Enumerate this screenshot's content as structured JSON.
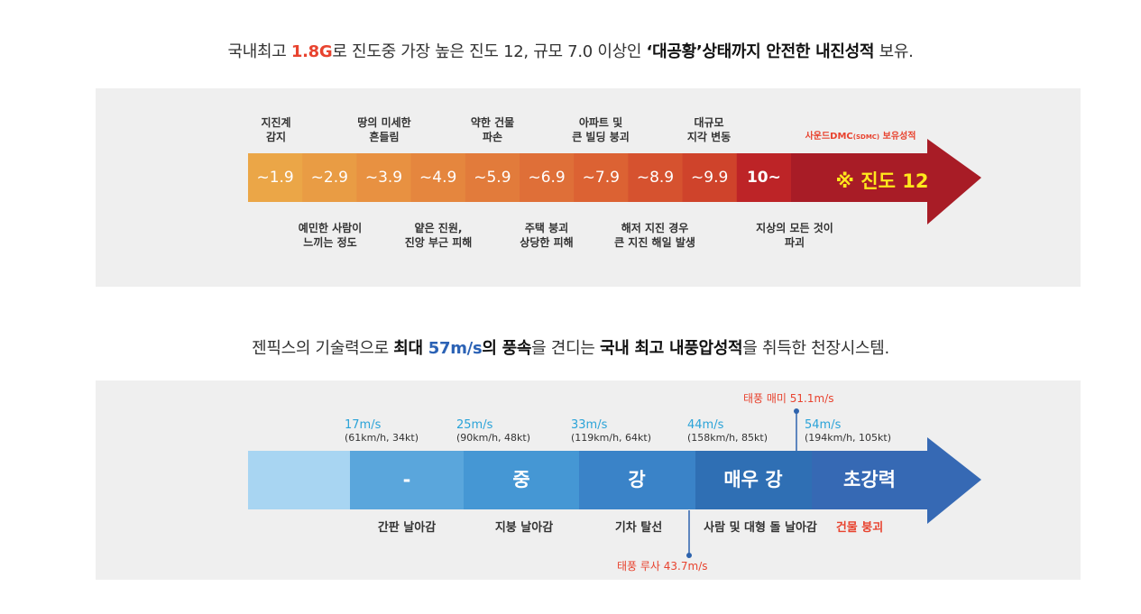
{
  "section1": {
    "headline": {
      "p1": "국내최고 ",
      "accent": "1.8G",
      "p2": "로 진도중 가장  높은 진도 12,  규모 7.0 이상인 ",
      "bold": "‘대공황’상태까지 안전한 내진성적",
      "p3": " 보유."
    },
    "segments": [
      "~1.9",
      "~2.9",
      "~3.9",
      "~4.9",
      "~5.9",
      "~6.9",
      "~7.9",
      "~8.9",
      "~9.9",
      "10~"
    ],
    "highlight": {
      "symbol": "※",
      "text": "진도 12"
    },
    "result_note": {
      "part1": "사운드DMC",
      "part2": "(SDMC)",
      "part3": " 보유성적"
    },
    "top_labels": [
      {
        "line1": "지진계",
        "line2": "감지"
      },
      {
        "line1": "땅의 미세한",
        "line2": "흔들림"
      },
      {
        "line1": "약한 건물",
        "line2": "파손"
      },
      {
        "line1": "아파트 및",
        "line2": "큰 빌딩 붕괴"
      },
      {
        "line1": "대규모",
        "line2": "지각 변동"
      }
    ],
    "bottom_labels": [
      {
        "line1": "예민한 사람이",
        "line2": "느끼는 정도"
      },
      {
        "line1": "얕은 진원,",
        "line2": "진앙 부근 피해"
      },
      {
        "line1": "주택 붕괴",
        "line2": "상당한 피해"
      },
      {
        "line1": "해저 지진 경우",
        "line2": "큰 지진 해일 발생"
      },
      {
        "line1": "지상의 모든 것이",
        "line2": "파괴"
      }
    ],
    "colors": [
      "#eba647",
      "#e99c44",
      "#e89141",
      "#e5863e",
      "#e27b3b",
      "#df6f38",
      "#dc6233",
      "#d6522f",
      "#cf432b",
      "#bd2427",
      "#a81c26"
    ]
  },
  "section2": {
    "headline": {
      "p1": "젠픽스의 기술력으로 ",
      "b1": "최대 ",
      "accent": "57m/s",
      "b2": "의 풍속",
      "p2": "을 견디는 ",
      "b3": "국내 최고 내풍압성적",
      "p3": "을 취득한 천장시스템."
    },
    "segments": [
      "",
      "-",
      "중",
      "강",
      "매우 강",
      "초강력"
    ],
    "speeds": [
      {
        "value": "17m/s",
        "sub": "(61km/h, 34kt)"
      },
      {
        "value": "25m/s",
        "sub": "(90km/h, 48kt)"
      },
      {
        "value": "33m/s",
        "sub": "(119km/h, 64kt)"
      },
      {
        "value": "44m/s",
        "sub": "(158km/h, 85kt)"
      },
      {
        "value": "54m/s",
        "sub": "(194km/h, 105kt)"
      }
    ],
    "effects": [
      "간판 날아감",
      "지붕 날아감",
      "기차 탈선",
      "사람 및 대형 돌 날아감",
      "건물 붕괴"
    ],
    "typhoon_top": "태풍 매미  51.1m/s",
    "typhoon_bottom": "태풍 루사  43.7m/s",
    "colors": [
      "#a8d5f2",
      "#5aa6dc",
      "#4597d4",
      "#3a83c8",
      "#2f6fb4",
      "#2d63ad",
      "#3669b4"
    ]
  }
}
